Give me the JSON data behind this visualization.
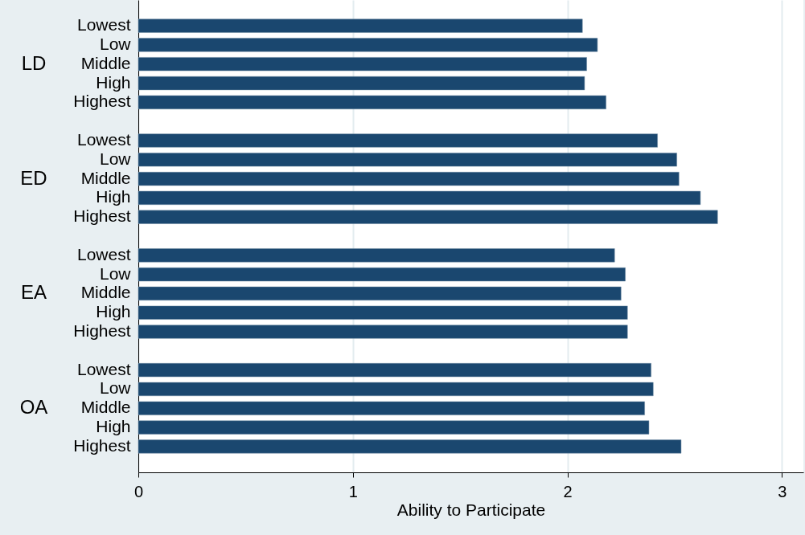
{
  "chart_data": {
    "type": "bar",
    "orientation": "horizontal",
    "xlabel": "Ability to Participate",
    "categories": [
      "Lowest",
      "Low",
      "Middle",
      "High",
      "Highest",
      null,
      "Lowest",
      "Low",
      "Middle",
      "High",
      "Highest",
      null,
      "Lowest",
      "Low",
      "Middle",
      "High",
      "Highest",
      null,
      "Lowest",
      "Low",
      "Middle",
      "High",
      "Highest"
    ],
    "values": [
      2.07,
      2.14,
      2.09,
      2.08,
      2.18,
      null,
      2.42,
      2.51,
      2.52,
      2.62,
      2.7,
      null,
      2.22,
      2.27,
      2.25,
      2.28,
      2.28,
      null,
      2.39,
      2.4,
      2.36,
      2.38,
      2.53
    ],
    "color": "#1a476f",
    "annotations": [
      "LD",
      "ED",
      "EA",
      "OA"
    ],
    "xlim": [
      0,
      3.1
    ],
    "xticks": [
      0,
      1,
      2,
      3
    ],
    "grid": "x"
  }
}
